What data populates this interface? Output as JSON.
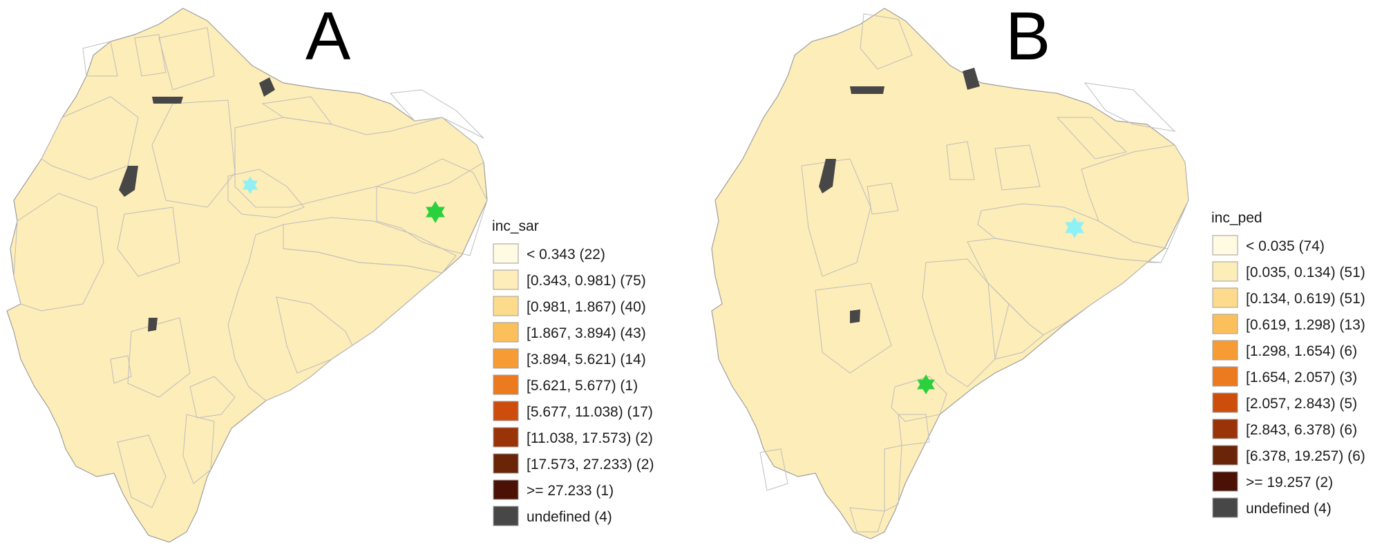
{
  "maps": [
    {
      "panel_label": "A",
      "legend_title": "inc_sar",
      "legend": [
        {
          "label": "< 0.343 (22)",
          "color": "#fffbe3"
        },
        {
          "label": "[0.343, 0.981) (75)",
          "color": "#fdedb8"
        },
        {
          "label": "[0.981, 1.867) (40)",
          "color": "#fcdc8c"
        },
        {
          "label": "[1.867, 3.894) (43)",
          "color": "#fbc05c"
        },
        {
          "label": "[3.894, 5.621) (14)",
          "color": "#f79c34"
        },
        {
          "label": "[5.621, 5.677) (1)",
          "color": "#ec7a1e"
        },
        {
          "label": "[5.677, 11.038) (17)",
          "color": "#cc4d0c"
        },
        {
          "label": "[11.038, 17.573) (2)",
          "color": "#9a3408"
        },
        {
          "label": "[17.573, 27.233) (2)",
          "color": "#6a2508"
        },
        {
          "label": ">= 27.233 (1)",
          "color": "#4a1104"
        },
        {
          "label": "undefined (4)",
          "color": "#474747"
        }
      ],
      "markers": [
        {
          "shape": "star-of-david",
          "color": "#8ff0f5"
        },
        {
          "shape": "star-of-david",
          "color": "#2bd13c"
        }
      ]
    },
    {
      "panel_label": "B",
      "legend_title": "inc_ped",
      "legend": [
        {
          "label": "< 0.035 (74)",
          "color": "#fffbe3"
        },
        {
          "label": "[0.035, 0.134) (51)",
          "color": "#fdedb8"
        },
        {
          "label": "[0.134, 0.619) (51)",
          "color": "#fcdc8c"
        },
        {
          "label": "[0.619, 1.298) (13)",
          "color": "#fbc05c"
        },
        {
          "label": "[1.298, 1.654) (6)",
          "color": "#f79c34"
        },
        {
          "label": "[1.654, 2.057) (3)",
          "color": "#ec7a1e"
        },
        {
          "label": "[2.057, 2.843) (5)",
          "color": "#cc4d0c"
        },
        {
          "label": "[2.843, 6.378) (6)",
          "color": "#9a3408"
        },
        {
          "label": "[6.378, 19.257) (6)",
          "color": "#6a2508"
        },
        {
          "label": ">= 19.257 (2)",
          "color": "#4a1104"
        },
        {
          "label": "undefined (4)",
          "color": "#474747"
        }
      ],
      "markers": [
        {
          "shape": "star-of-david",
          "color": "#8ff0f5"
        },
        {
          "shape": "star-of-david",
          "color": "#2bd13c"
        }
      ]
    }
  ]
}
